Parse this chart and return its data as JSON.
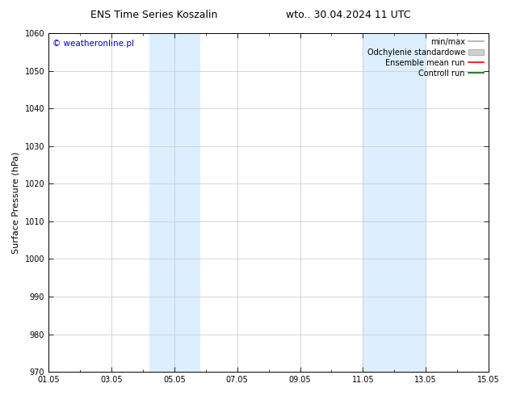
{
  "title_left": "ENS Time Series Koszalin",
  "title_right": "wto.. 30.04.2024 11 UTC",
  "ylabel": "Surface Pressure (hPa)",
  "ylim": [
    970,
    1060
  ],
  "yticks": [
    970,
    980,
    990,
    1000,
    1010,
    1020,
    1030,
    1040,
    1050,
    1060
  ],
  "xlim_start": 0,
  "xlim_end": 14,
  "xtick_positions": [
    0,
    2,
    4,
    6,
    8,
    10,
    12,
    14
  ],
  "xtick_labels": [
    "01.05",
    "03.05",
    "05.05",
    "07.05",
    "09.05",
    "11.05",
    "13.05",
    "15.05"
  ],
  "shade_bands": [
    {
      "xmin": 3.2,
      "xmax": 4.8
    },
    {
      "xmin": 10.0,
      "xmax": 12.0
    }
  ],
  "shade_color": "#ddeeff",
  "bg_color": "#ffffff",
  "grid_color": "#c8c8c8",
  "copyright_text": "© weatheronline.pl",
  "copyright_color": "#0000cc",
  "legend_entries": [
    {
      "label": "min/max",
      "color": "#aaaaaa",
      "type": "line"
    },
    {
      "label": "Odchylenie standardowe",
      "color": "#d0d0d0",
      "type": "rect"
    },
    {
      "label": "Ensemble mean run",
      "color": "#ff0000",
      "type": "line"
    },
    {
      "label": "Controll run",
      "color": "#006400",
      "type": "line"
    }
  ],
  "title_fontsize": 9,
  "axis_label_fontsize": 8,
  "tick_fontsize": 7,
  "legend_fontsize": 7,
  "copyright_fontsize": 7.5
}
